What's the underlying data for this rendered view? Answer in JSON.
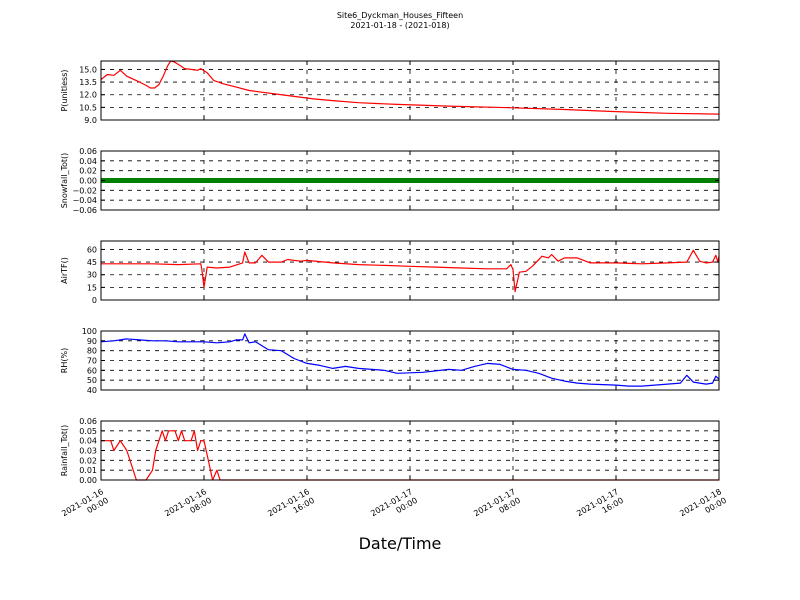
{
  "page": {
    "title": "Site6_Dyckman_Houses_Fifteen",
    "subtitle": "2021-01-18 - (2021-018)",
    "xlabel": "Date/Time"
  },
  "chart_data": {
    "type": "line",
    "x_range": [
      "2021-01-16 00:00",
      "2021-01-18 00:00"
    ],
    "x_ticks": [
      {
        "t": "2021-01-16 00:00",
        "line1": "2021-01-16",
        "line2": "00:00"
      },
      {
        "t": "2021-01-16 08:00",
        "line1": "2021-01-16",
        "line2": "08:00"
      },
      {
        "t": "2021-01-16 16:00",
        "line1": "2021-01-16",
        "line2": "16:00"
      },
      {
        "t": "2021-01-17 00:00",
        "line1": "2021-01-17",
        "line2": "00:00"
      },
      {
        "t": "2021-01-17 08:00",
        "line1": "2021-01-17",
        "line2": "08:00"
      },
      {
        "t": "2021-01-17 16:00",
        "line1": "2021-01-17",
        "line2": "16:00"
      },
      {
        "t": "2021-01-18 00:00",
        "line1": "2021-01-18",
        "line2": "00:00"
      }
    ],
    "xlabel": "Date/Time",
    "grid": true,
    "panels": [
      {
        "name": "p",
        "ylabel": "P(unitless)",
        "color": "#ff0000",
        "ylim": [
          9.0,
          16.0
        ],
        "yticks": [
          9.0,
          10.5,
          12.0,
          13.5,
          15.0
        ],
        "ytick_labels": [
          "9.0",
          "10.5",
          "12.0",
          "13.5",
          "15.0"
        ],
        "points": [
          [
            "2021-01-16 00:00",
            13.8
          ],
          [
            "2021-01-16 00:30",
            14.4
          ],
          [
            "2021-01-16 01:00",
            14.3
          ],
          [
            "2021-01-16 01:30",
            14.9
          ],
          [
            "2021-01-16 02:00",
            14.2
          ],
          [
            "2021-01-16 03:00",
            13.5
          ],
          [
            "2021-01-16 03:30",
            13.1
          ],
          [
            "2021-01-16 03:50",
            12.8
          ],
          [
            "2021-01-16 04:10",
            12.8
          ],
          [
            "2021-01-16 04:30",
            13.2
          ],
          [
            "2021-01-16 04:50",
            14.2
          ],
          [
            "2021-01-16 05:10",
            15.4
          ],
          [
            "2021-01-16 05:25",
            16.0
          ],
          [
            "2021-01-16 05:40",
            15.9
          ],
          [
            "2021-01-16 06:00",
            15.6
          ],
          [
            "2021-01-16 06:30",
            15.1
          ],
          [
            "2021-01-16 07:00",
            15.0
          ],
          [
            "2021-01-16 07:30",
            14.9
          ],
          [
            "2021-01-16 07:45",
            15.1
          ],
          [
            "2021-01-16 08:15",
            14.6
          ],
          [
            "2021-01-16 08:45",
            13.7
          ],
          [
            "2021-01-16 09:30",
            13.3
          ],
          [
            "2021-01-16 10:30",
            12.9
          ],
          [
            "2021-01-16 11:30",
            12.5
          ],
          [
            "2021-01-16 12:30",
            12.3
          ],
          [
            "2021-01-16 13:30",
            12.1
          ],
          [
            "2021-01-16 15:00",
            11.8
          ],
          [
            "2021-01-16 16:30",
            11.5
          ],
          [
            "2021-01-16 18:00",
            11.3
          ],
          [
            "2021-01-16 20:00",
            11.05
          ],
          [
            "2021-01-16 23:00",
            10.85
          ],
          [
            "2021-01-17 03:00",
            10.65
          ],
          [
            "2021-01-17 08:00",
            10.45
          ],
          [
            "2021-01-17 12:00",
            10.25
          ],
          [
            "2021-01-17 16:00",
            10.0
          ],
          [
            "2021-01-17 20:00",
            9.8
          ],
          [
            "2021-01-18 00:00",
            9.7
          ]
        ]
      },
      {
        "name": "snow",
        "ylabel": "Snowfall_Tot()",
        "color": "#008000",
        "ylim": [
          -0.06,
          0.06
        ],
        "yticks": [
          -0.06,
          -0.04,
          -0.02,
          0.0,
          0.02,
          0.04,
          0.06
        ],
        "ytick_labels": [
          "−0.06",
          "−0.04",
          "−0.02",
          "0.00",
          "0.02",
          "0.04",
          "0.06"
        ],
        "thick": true,
        "points": [
          [
            "2021-01-16 00:00",
            0.0
          ],
          [
            "2021-01-18 00:00",
            0.0
          ]
        ]
      },
      {
        "name": "airt",
        "ylabel": "AirTF()",
        "color": "#ff0000",
        "ylim": [
          0,
          70
        ],
        "yticks": [
          0,
          15,
          30,
          45,
          60
        ],
        "ytick_labels": [
          "0",
          "15",
          "30",
          "45",
          "60"
        ],
        "points": [
          [
            "2021-01-16 00:00",
            43
          ],
          [
            "2021-01-16 02:00",
            43
          ],
          [
            "2021-01-16 04:00",
            43
          ],
          [
            "2021-01-16 06:00",
            42
          ],
          [
            "2021-01-16 07:45",
            43
          ],
          [
            "2021-01-16 07:50",
            36
          ],
          [
            "2021-01-16 08:00",
            15
          ],
          [
            "2021-01-16 08:15",
            39
          ],
          [
            "2021-01-16 09:00",
            38
          ],
          [
            "2021-01-16 10:00",
            39
          ],
          [
            "2021-01-16 11:00",
            44
          ],
          [
            "2021-01-16 11:10",
            57
          ],
          [
            "2021-01-16 11:30",
            44
          ],
          [
            "2021-01-16 12:00",
            44
          ],
          [
            "2021-01-16 12:30",
            53
          ],
          [
            "2021-01-16 13:00",
            45
          ],
          [
            "2021-01-16 14:00",
            45
          ],
          [
            "2021-01-16 14:30",
            48
          ],
          [
            "2021-01-16 15:30",
            46
          ],
          [
            "2021-01-16 16:00",
            47
          ],
          [
            "2021-01-16 18:00",
            44
          ],
          [
            "2021-01-16 20:00",
            42
          ],
          [
            "2021-01-16 22:00",
            41
          ],
          [
            "2021-01-17 00:00",
            40
          ],
          [
            "2021-01-17 02:00",
            39
          ],
          [
            "2021-01-17 04:00",
            38
          ],
          [
            "2021-01-17 06:00",
            37
          ],
          [
            "2021-01-17 07:30",
            37
          ],
          [
            "2021-01-17 07:50",
            42
          ],
          [
            "2021-01-17 08:00",
            36
          ],
          [
            "2021-01-17 08:10",
            10
          ],
          [
            "2021-01-17 08:30",
            33
          ],
          [
            "2021-01-17 09:00",
            34
          ],
          [
            "2021-01-17 09:30",
            40
          ],
          [
            "2021-01-17 10:15",
            52
          ],
          [
            "2021-01-17 10:45",
            50
          ],
          [
            "2021-01-17 11:00",
            54
          ],
          [
            "2021-01-17 11:30",
            46
          ],
          [
            "2021-01-17 12:00",
            50
          ],
          [
            "2021-01-17 13:00",
            50
          ],
          [
            "2021-01-17 14:00",
            44
          ],
          [
            "2021-01-17 16:00",
            44
          ],
          [
            "2021-01-17 18:00",
            43
          ],
          [
            "2021-01-17 20:00",
            44
          ],
          [
            "2021-01-17 21:30",
            45
          ],
          [
            "2021-01-17 22:00",
            59
          ],
          [
            "2021-01-17 22:30",
            46
          ],
          [
            "2021-01-17 23:00",
            44
          ],
          [
            "2021-01-17 23:30",
            45
          ],
          [
            "2021-01-17 23:45",
            53
          ],
          [
            "2021-01-17 23:55",
            45
          ],
          [
            "2021-01-18 00:00",
            52
          ]
        ]
      },
      {
        "name": "rh",
        "ylabel": "RH(%)",
        "color": "#0000ff",
        "ylim": [
          40,
          100
        ],
        "yticks": [
          40,
          50,
          60,
          70,
          80,
          90,
          100
        ],
        "ytick_labels": [
          "40",
          "50",
          "60",
          "70",
          "80",
          "90",
          "100"
        ],
        "points": [
          [
            "2021-01-16 00:00",
            89
          ],
          [
            "2021-01-16 01:00",
            90
          ],
          [
            "2021-01-16 02:00",
            92
          ],
          [
            "2021-01-16 03:00",
            91
          ],
          [
            "2021-01-16 04:00",
            90
          ],
          [
            "2021-01-16 05:00",
            90
          ],
          [
            "2021-01-16 06:00",
            89
          ],
          [
            "2021-01-16 07:00",
            89
          ],
          [
            "2021-01-16 08:00",
            89
          ],
          [
            "2021-01-16 09:00",
            88
          ],
          [
            "2021-01-16 10:00",
            89
          ],
          [
            "2021-01-16 10:30",
            91
          ],
          [
            "2021-01-16 11:00",
            91
          ],
          [
            "2021-01-16 11:10",
            97
          ],
          [
            "2021-01-16 11:30",
            88
          ],
          [
            "2021-01-16 12:00",
            89
          ],
          [
            "2021-01-16 13:00",
            81
          ],
          [
            "2021-01-16 14:00",
            80
          ],
          [
            "2021-01-16 15:00",
            72
          ],
          [
            "2021-01-16 16:00",
            67
          ],
          [
            "2021-01-16 17:00",
            65
          ],
          [
            "2021-01-16 18:00",
            62
          ],
          [
            "2021-01-16 19:00",
            64
          ],
          [
            "2021-01-16 20:00",
            62
          ],
          [
            "2021-01-16 22:00",
            60
          ],
          [
            "2021-01-16 23:00",
            57
          ],
          [
            "2021-01-17 01:00",
            58
          ],
          [
            "2021-01-17 03:00",
            61
          ],
          [
            "2021-01-17 04:00",
            60
          ],
          [
            "2021-01-17 05:00",
            64
          ],
          [
            "2021-01-17 06:00",
            67
          ],
          [
            "2021-01-17 07:00",
            66
          ],
          [
            "2021-01-17 08:00",
            61
          ],
          [
            "2021-01-17 09:00",
            60
          ],
          [
            "2021-01-17 10:00",
            57
          ],
          [
            "2021-01-17 11:00",
            52
          ],
          [
            "2021-01-17 12:00",
            49
          ],
          [
            "2021-01-17 13:00",
            47
          ],
          [
            "2021-01-17 14:00",
            46
          ],
          [
            "2021-01-17 16:00",
            45
          ],
          [
            "2021-01-17 17:00",
            44
          ],
          [
            "2021-01-17 18:00",
            44
          ],
          [
            "2021-01-17 20:00",
            46
          ],
          [
            "2021-01-17 21:00",
            47
          ],
          [
            "2021-01-17 21:30",
            55
          ],
          [
            "2021-01-17 22:00",
            48
          ],
          [
            "2021-01-17 23:00",
            46
          ],
          [
            "2021-01-17 23:30",
            47
          ],
          [
            "2021-01-17 23:45",
            54
          ],
          [
            "2021-01-18 00:00",
            51
          ]
        ]
      },
      {
        "name": "rain",
        "ylabel": "Rainfall_Tot()",
        "color": "#ff0000",
        "ylim": [
          0.0,
          0.06
        ],
        "yticks": [
          0.0,
          0.01,
          0.02,
          0.03,
          0.04,
          0.05,
          0.06
        ],
        "ytick_labels": [
          "0.00",
          "0.01",
          "0.02",
          "0.03",
          "0.04",
          "0.05",
          "0.06"
        ],
        "points": [
          [
            "2021-01-16 00:00",
            0.04
          ],
          [
            "2021-01-16 00:45",
            0.04
          ],
          [
            "2021-01-16 01:00",
            0.03
          ],
          [
            "2021-01-16 01:30",
            0.04
          ],
          [
            "2021-01-16 02:00",
            0.03
          ],
          [
            "2021-01-16 02:30",
            0.01
          ],
          [
            "2021-01-16 02:45",
            0.0
          ],
          [
            "2021-01-16 03:30",
            0.0
          ],
          [
            "2021-01-16 04:00",
            0.01
          ],
          [
            "2021-01-16 04:15",
            0.03
          ],
          [
            "2021-01-16 04:45",
            0.05
          ],
          [
            "2021-01-16 05:00",
            0.04
          ],
          [
            "2021-01-16 05:15",
            0.05
          ],
          [
            "2021-01-16 05:45",
            0.05
          ],
          [
            "2021-01-16 06:00",
            0.04
          ],
          [
            "2021-01-16 06:15",
            0.05
          ],
          [
            "2021-01-16 06:30",
            0.04
          ],
          [
            "2021-01-16 07:00",
            0.04
          ],
          [
            "2021-01-16 07:15",
            0.05
          ],
          [
            "2021-01-16 07:30",
            0.03
          ],
          [
            "2021-01-16 07:45",
            0.04
          ],
          [
            "2021-01-16 08:00",
            0.04
          ],
          [
            "2021-01-16 08:20",
            0.02
          ],
          [
            "2021-01-16 08:40",
            0.0
          ],
          [
            "2021-01-16 09:00",
            0.01
          ],
          [
            "2021-01-16 09:15",
            0.0
          ],
          [
            "2021-01-18 00:00",
            0.0
          ]
        ]
      }
    ]
  }
}
